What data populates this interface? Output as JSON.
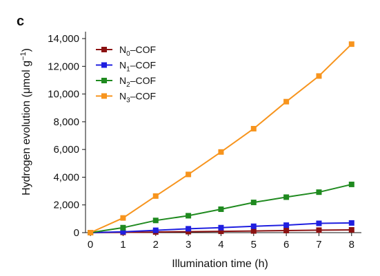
{
  "panel_label": "c",
  "chart_data": {
    "type": "line",
    "x": [
      0,
      1,
      2,
      3,
      4,
      5,
      6,
      7,
      8
    ],
    "series": [
      {
        "name": "N0–COF",
        "base": "N",
        "sub": "0",
        "suffix": "–COF",
        "color": "#8b1212",
        "marker": "square",
        "values": [
          0,
          20,
          45,
          70,
          95,
          120,
          150,
          180,
          200
        ]
      },
      {
        "name": "N1–COF",
        "base": "N",
        "sub": "1",
        "suffix": "–COF",
        "color": "#1f1fe0",
        "marker": "square",
        "values": [
          0,
          60,
          170,
          280,
          360,
          460,
          540,
          670,
          700
        ]
      },
      {
        "name": "N2–COF",
        "base": "N",
        "sub": "2",
        "suffix": "–COF",
        "color": "#1f8a1f",
        "marker": "square",
        "values": [
          0,
          360,
          880,
          1220,
          1690,
          2180,
          2560,
          2920,
          3480
        ]
      },
      {
        "name": "N3–COF",
        "base": "N",
        "sub": "3",
        "suffix": "–COF",
        "color": "#f7941d",
        "marker": "square",
        "values": [
          0,
          1060,
          2640,
          4200,
          5820,
          7500,
          9450,
          11300,
          13600
        ]
      }
    ],
    "xlabel": "Illumination time (h)",
    "ylabel": {
      "main": "Hydrogen evolution (μmol g",
      "sup": "−1",
      "tail": ")"
    },
    "xlim": [
      -0.15,
      8.3
    ],
    "ylim": [
      0,
      14500
    ],
    "xticks": [
      0,
      1,
      2,
      3,
      4,
      5,
      6,
      7,
      8
    ],
    "xtick_labels": [
      "0",
      "1",
      "2",
      "3",
      "4",
      "5",
      "6",
      "7",
      "8"
    ],
    "yticks": [
      0,
      2000,
      4000,
      6000,
      8000,
      10000,
      12000,
      14000
    ],
    "ytick_labels": [
      "0",
      "2,000",
      "4,000",
      "6,000",
      "8,000",
      "10,000",
      "12,000",
      "14,000"
    ],
    "grid": false,
    "legend_position": "top-left"
  }
}
